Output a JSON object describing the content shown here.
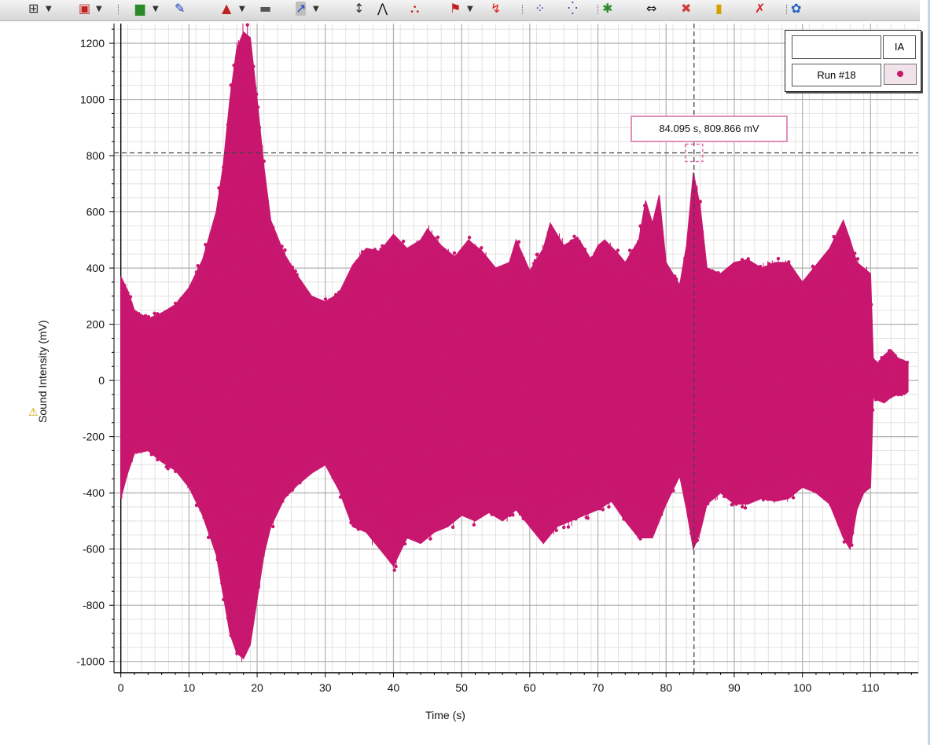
{
  "toolbar": {
    "tools": [
      {
        "name": "table-icon",
        "glyph": "⊞"
      },
      {
        "name": "graph-display-icon",
        "glyph": "▣"
      },
      {
        "name": "data-browser-icon",
        "glyph": "▆"
      },
      {
        "name": "highlighter-icon",
        "glyph": "✎"
      },
      {
        "name": "scale-tool-icon",
        "glyph": "▲"
      },
      {
        "name": "ruler-icon",
        "glyph": "▬"
      },
      {
        "name": "curve-fit-icon",
        "glyph": "↗"
      },
      {
        "name": "selection-tool-icon",
        "glyph": "↕"
      },
      {
        "name": "smart-tool-icon",
        "glyph": "⋀"
      },
      {
        "name": "delta-tool-icon",
        "glyph": "⛬"
      },
      {
        "name": "slope-tool-icon",
        "glyph": "⚑"
      },
      {
        "name": "area-tool-icon",
        "glyph": "↯"
      },
      {
        "name": "prediction-tool-icon",
        "glyph": "⁘"
      },
      {
        "name": "annotation-icon",
        "glyph": "⁛"
      },
      {
        "name": "statistics-icon",
        "glyph": "✱"
      },
      {
        "name": "fit-icon",
        "glyph": "⇔"
      },
      {
        "name": "remove-icon",
        "glyph": "✖"
      },
      {
        "name": "note-icon",
        "glyph": "▮"
      },
      {
        "name": "delete-icon",
        "glyph": "✗"
      },
      {
        "name": "settings-icon",
        "glyph": "✿"
      }
    ]
  },
  "legend": {
    "header_blank": "",
    "header_label": "IA",
    "run_label": "Run #18"
  },
  "tooltip": {
    "text": "84.095 s, 809.866 mV"
  },
  "warning_icon": "warning-icon",
  "colors": {
    "series": "#c8176f",
    "grid_major": "#b0b0b0",
    "grid_minor": "#e2e2e2",
    "tooltip_border": "#e090b8"
  },
  "chart_data": {
    "type": "line",
    "xlabel": "Time (s)",
    "ylabel": "Sound Intensity (mV)",
    "xlim": [
      -1,
      117
    ],
    "ylim": [
      -1040,
      1270
    ],
    "xticks": [
      0,
      10,
      20,
      30,
      40,
      50,
      60,
      70,
      80,
      90,
      100,
      110
    ],
    "yticks": [
      -1000,
      -800,
      -600,
      -400,
      -200,
      0,
      200,
      400,
      600,
      800,
      1000,
      1200
    ],
    "grid": true,
    "legend_position": "top-right",
    "cursor": {
      "x": 84.095,
      "y": 809.866
    },
    "series": [
      {
        "name": "Run #18",
        "envelope_upper": [
          [
            0,
            370
          ],
          [
            1,
            320
          ],
          [
            2,
            250
          ],
          [
            4,
            220
          ],
          [
            6,
            240
          ],
          [
            8,
            270
          ],
          [
            10,
            330
          ],
          [
            12,
            430
          ],
          [
            14,
            600
          ],
          [
            15,
            760
          ],
          [
            16,
            1000
          ],
          [
            17,
            1180
          ],
          [
            18,
            1240
          ],
          [
            19,
            1220
          ],
          [
            20,
            1000
          ],
          [
            21,
            760
          ],
          [
            22,
            570
          ],
          [
            24,
            450
          ],
          [
            26,
            370
          ],
          [
            28,
            300
          ],
          [
            30,
            280
          ],
          [
            32,
            310
          ],
          [
            34,
            410
          ],
          [
            36,
            470
          ],
          [
            38,
            460
          ],
          [
            40,
            520
          ],
          [
            42,
            470
          ],
          [
            44,
            500
          ],
          [
            45,
            540
          ],
          [
            47,
            480
          ],
          [
            49,
            440
          ],
          [
            51,
            500
          ],
          [
            53,
            460
          ],
          [
            55,
            400
          ],
          [
            57,
            420
          ],
          [
            58,
            500
          ],
          [
            60,
            390
          ],
          [
            62,
            470
          ],
          [
            63,
            560
          ],
          [
            65,
            480
          ],
          [
            67,
            510
          ],
          [
            69,
            430
          ],
          [
            70,
            480
          ],
          [
            71,
            500
          ],
          [
            73,
            450
          ],
          [
            74,
            420
          ],
          [
            76,
            500
          ],
          [
            77,
            640
          ],
          [
            78,
            560
          ],
          [
            79,
            660
          ],
          [
            80,
            420
          ],
          [
            82,
            340
          ],
          [
            83,
            480
          ],
          [
            84,
            740
          ],
          [
            85,
            620
          ],
          [
            86,
            400
          ],
          [
            88,
            380
          ],
          [
            90,
            420
          ],
          [
            92,
            430
          ],
          [
            94,
            400
          ],
          [
            96,
            420
          ],
          [
            98,
            420
          ],
          [
            100,
            350
          ],
          [
            102,
            410
          ],
          [
            104,
            470
          ],
          [
            106,
            570
          ],
          [
            107,
            500
          ],
          [
            108,
            420
          ],
          [
            109,
            400
          ],
          [
            110,
            380
          ],
          [
            110.4,
            80
          ],
          [
            111,
            60
          ],
          [
            112,
            90
          ],
          [
            113,
            110
          ],
          [
            114,
            80
          ],
          [
            115,
            70
          ],
          [
            115.5,
            60
          ]
        ],
        "envelope_lower": [
          [
            0,
            -420
          ],
          [
            1,
            -330
          ],
          [
            2,
            -260
          ],
          [
            4,
            -250
          ],
          [
            6,
            -290
          ],
          [
            8,
            -320
          ],
          [
            10,
            -380
          ],
          [
            12,
            -480
          ],
          [
            14,
            -620
          ],
          [
            15,
            -760
          ],
          [
            16,
            -900
          ],
          [
            17,
            -970
          ],
          [
            18,
            -990
          ],
          [
            19,
            -940
          ],
          [
            20,
            -780
          ],
          [
            21,
            -620
          ],
          [
            22,
            -520
          ],
          [
            24,
            -420
          ],
          [
            26,
            -370
          ],
          [
            28,
            -330
          ],
          [
            30,
            -300
          ],
          [
            32,
            -390
          ],
          [
            34,
            -520
          ],
          [
            36,
            -540
          ],
          [
            38,
            -600
          ],
          [
            40,
            -660
          ],
          [
            42,
            -560
          ],
          [
            44,
            -580
          ],
          [
            46,
            -540
          ],
          [
            48,
            -520
          ],
          [
            50,
            -480
          ],
          [
            52,
            -500
          ],
          [
            54,
            -470
          ],
          [
            56,
            -500
          ],
          [
            58,
            -460
          ],
          [
            60,
            -520
          ],
          [
            62,
            -580
          ],
          [
            64,
            -520
          ],
          [
            66,
            -500
          ],
          [
            68,
            -480
          ],
          [
            70,
            -460
          ],
          [
            72,
            -430
          ],
          [
            74,
            -500
          ],
          [
            76,
            -560
          ],
          [
            78,
            -560
          ],
          [
            80,
            -440
          ],
          [
            82,
            -340
          ],
          [
            83,
            -460
          ],
          [
            84,
            -600
          ],
          [
            85,
            -540
          ],
          [
            86,
            -440
          ],
          [
            88,
            -400
          ],
          [
            90,
            -440
          ],
          [
            92,
            -440
          ],
          [
            94,
            -420
          ],
          [
            96,
            -430
          ],
          [
            98,
            -420
          ],
          [
            100,
            -380
          ],
          [
            102,
            -400
          ],
          [
            104,
            -440
          ],
          [
            106,
            -560
          ],
          [
            107,
            -600
          ],
          [
            108,
            -460
          ],
          [
            109,
            -400
          ],
          [
            110,
            -380
          ],
          [
            110.4,
            -60
          ],
          [
            111,
            -70
          ],
          [
            112,
            -80
          ],
          [
            113,
            -60
          ],
          [
            114,
            -50
          ],
          [
            115,
            -50
          ],
          [
            115.5,
            -40
          ]
        ]
      }
    ]
  }
}
